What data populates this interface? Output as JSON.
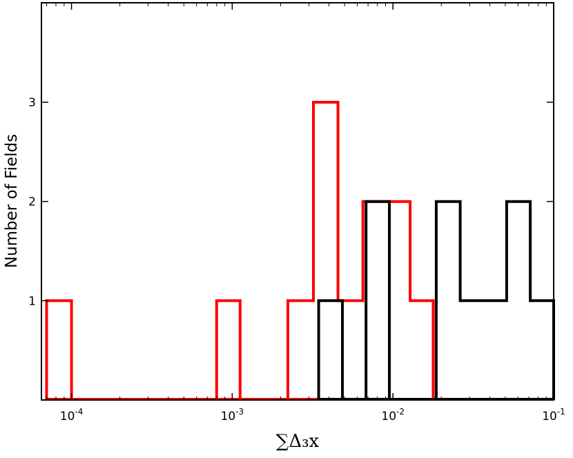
{
  "chart_data": {
    "type": "histogram",
    "title": "",
    "xlabel": "∑Δ₃x",
    "ylabel": "Number of Fields",
    "xscale": "log",
    "xlim": [
      6.5e-05,
      0.1
    ],
    "ylim": [
      0,
      3.0
    ],
    "x_ticks": [
      {
        "value": 0.0001,
        "label": "10-4",
        "base": "10",
        "exp": "-4"
      },
      {
        "value": 0.001,
        "label": "10-3",
        "base": "10",
        "exp": "-3"
      },
      {
        "value": 0.01,
        "label": "10-2",
        "base": "10",
        "exp": "-2"
      },
      {
        "value": 0.1,
        "label": "10-1",
        "base": "10",
        "exp": "-1"
      }
    ],
    "y_ticks": [
      {
        "value": 1,
        "label": "1"
      },
      {
        "value": 2,
        "label": "2"
      },
      {
        "value": 3,
        "label": "3"
      }
    ],
    "grid": false,
    "legend": "none",
    "series": [
      {
        "color": "#ff0000",
        "bins": [
          {
            "x0": 7e-05,
            "x1": 0.0001,
            "count": 1
          },
          {
            "x0": 0.0008,
            "x1": 0.00112,
            "count": 1
          },
          {
            "x0": 0.00222,
            "x1": 0.0032,
            "count": 1
          },
          {
            "x0": 0.0032,
            "x1": 0.00455,
            "count": 3
          },
          {
            "x0": 0.00455,
            "x1": 0.0065,
            "count": 1
          },
          {
            "x0": 0.0065,
            "x1": 0.0128,
            "count": 2
          },
          {
            "x0": 0.0128,
            "x1": 0.0178,
            "count": 1
          }
        ]
      },
      {
        "color": "#000000",
        "bins": [
          {
            "x0": 0.00345,
            "x1": 0.00485,
            "count": 1
          },
          {
            "x0": 0.0068,
            "x1": 0.0095,
            "count": 2
          },
          {
            "x0": 0.0186,
            "x1": 0.0262,
            "count": 2
          },
          {
            "x0": 0.0262,
            "x1": 0.051,
            "count": 1
          },
          {
            "x0": 0.051,
            "x1": 0.0715,
            "count": 2
          },
          {
            "x0": 0.0715,
            "x1": 0.1,
            "count": 1
          }
        ]
      }
    ]
  }
}
